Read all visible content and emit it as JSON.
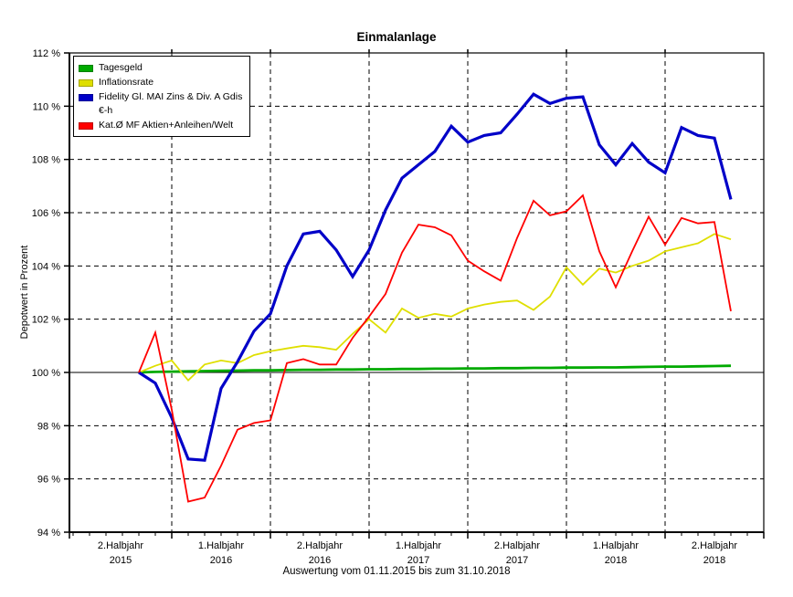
{
  "window": {
    "background": "#ffffff"
  },
  "chart": {
    "title": "Einmalanlage",
    "footer": "Auswertung vom 01.11.2015 bis zum 31.10.2018",
    "y_axis_title": "Depotwert in Prozent"
  },
  "legend": {
    "items": [
      {
        "label": "Tagesgeld",
        "label_line2": "",
        "color": "#00AA00"
      },
      {
        "label": "Inflationsrate",
        "label_line2": "",
        "color": "#DFDF00"
      },
      {
        "label": "Fidelity Gl. MAI Zins & Div. A Gdis",
        "label_line2": "€-h",
        "color": "#0000C8"
      },
      {
        "label": "Kat.Ø MF Aktien+Anleihen/Welt",
        "label_line2": "",
        "color": "#FF0000"
      }
    ]
  },
  "chart_data": {
    "type": "line",
    "title": "Einmalanlage",
    "ylabel": "Depotwert in Prozent",
    "ylim": [
      94,
      112
    ],
    "y_axis": {
      "min": 94,
      "max": 112,
      "step": 2,
      "suffix": " %"
    },
    "grid": {
      "dashed": true,
      "baseline_value": 100,
      "legend_position": "top-left"
    },
    "x": [
      "2015-11",
      "2015-12",
      "2016-01",
      "2016-02",
      "2016-03",
      "2016-04",
      "2016-05",
      "2016-06",
      "2016-07",
      "2016-08",
      "2016-09",
      "2016-10",
      "2016-11",
      "2016-12",
      "2017-01",
      "2017-02",
      "2017-03",
      "2017-04",
      "2017-05",
      "2017-06",
      "2017-07",
      "2017-08",
      "2017-09",
      "2017-10",
      "2017-11",
      "2017-12",
      "2018-01",
      "2018-02",
      "2018-03",
      "2018-04",
      "2018-05",
      "2018-06",
      "2018-07",
      "2018-08",
      "2018-09",
      "2018-10",
      "2018-11"
    ],
    "xticks": [
      {
        "line1": "2.Halbjahr",
        "line2": "2015"
      },
      {
        "line1": "1.Halbjahr",
        "line2": "2016"
      },
      {
        "line1": "2.Halbjahr",
        "line2": "2016"
      },
      {
        "line1": "1.Halbjahr",
        "line2": "2017"
      },
      {
        "line1": "2.Halbjahr",
        "line2": "2017"
      },
      {
        "line1": "1.Halbjahr",
        "line2": "2018"
      },
      {
        "line1": "2.Halbjahr",
        "line2": "2018"
      }
    ],
    "series": [
      {
        "name": "Tagesgeld",
        "color": "#00AA00",
        "width": 2.8,
        "values": [
          100.0,
          100.02,
          100.03,
          100.04,
          100.05,
          100.06,
          100.07,
          100.08,
          100.08,
          100.09,
          100.1,
          100.1,
          100.11,
          100.11,
          100.12,
          100.12,
          100.13,
          100.13,
          100.14,
          100.14,
          100.15,
          100.15,
          100.16,
          100.16,
          100.17,
          100.17,
          100.18,
          100.18,
          100.19,
          100.19,
          100.2,
          100.21,
          100.22,
          100.22,
          100.23,
          100.24,
          100.25
        ]
      },
      {
        "name": "Inflationsrate",
        "color": "#DFDF00",
        "width": 1.8,
        "values": [
          100.0,
          100.25,
          100.45,
          99.7,
          100.3,
          100.45,
          100.35,
          100.65,
          100.8,
          100.9,
          101.0,
          100.95,
          100.85,
          101.45,
          102.0,
          101.5,
          102.4,
          102.05,
          102.2,
          102.1,
          102.4,
          102.55,
          102.65,
          102.7,
          102.35,
          102.85,
          103.95,
          103.3,
          103.9,
          103.75,
          104.0,
          104.2,
          104.55,
          104.7,
          104.85,
          105.2,
          105.0
        ]
      },
      {
        "name": "Fidelity Gl. MAI Zins & Div. A Gdis €-h",
        "color": "#0000C8",
        "width": 3.2,
        "values": [
          100.0,
          99.6,
          98.3,
          96.75,
          96.7,
          99.4,
          100.4,
          101.55,
          102.2,
          104.0,
          105.2,
          105.3,
          104.6,
          103.6,
          104.6,
          106.1,
          107.3,
          107.8,
          108.3,
          109.25,
          108.65,
          108.9,
          109.0,
          109.7,
          110.45,
          110.1,
          110.3,
          110.35,
          108.55,
          107.8,
          108.6,
          107.9,
          107.5,
          109.2,
          108.9,
          108.8,
          106.5
        ]
      },
      {
        "name": "Kat.Ø MF Aktien+Anleihen/Welt",
        "color": "#FF0000",
        "width": 1.8,
        "values": [
          100.0,
          101.5,
          98.6,
          95.15,
          95.3,
          96.5,
          97.85,
          98.1,
          98.2,
          100.35,
          100.5,
          100.3,
          100.3,
          101.3,
          102.1,
          102.95,
          104.5,
          105.55,
          105.45,
          105.15,
          104.2,
          103.8,
          103.45,
          105.05,
          106.45,
          105.9,
          106.05,
          106.65,
          104.55,
          103.2,
          104.55,
          105.85,
          104.8,
          105.8,
          105.6,
          105.65,
          102.3
        ]
      }
    ]
  }
}
